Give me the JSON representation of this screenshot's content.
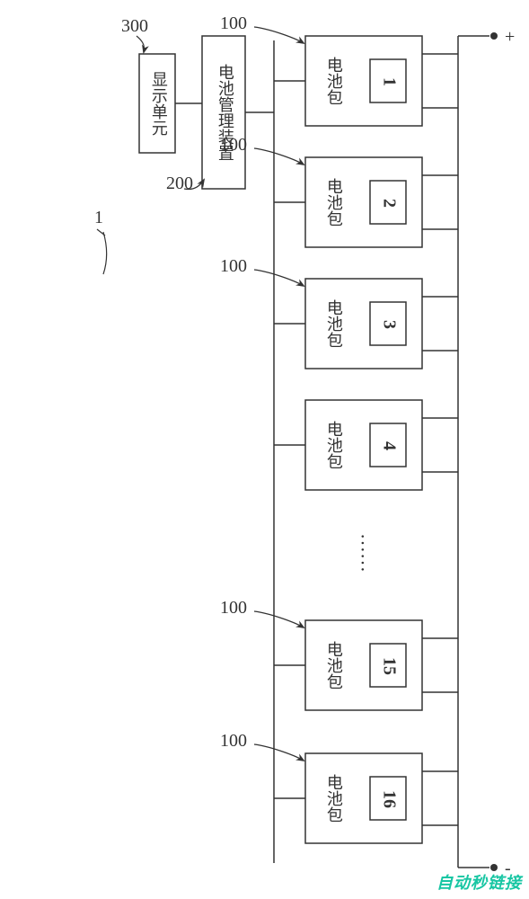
{
  "diagram": {
    "type": "flowchart",
    "background_color": "#ffffff",
    "stroke_color": "#333333",
    "stroke_width": 1.5,
    "font_family": "SimSun",
    "label_fontsize": 18,
    "numeral_fontsize": 20,
    "ref_fontsize": 20,
    "display_unit": {
      "label": "显示单元",
      "ref": "300"
    },
    "management_device": {
      "label": "电池管理装置",
      "ref": "200"
    },
    "system_ref": "1",
    "pack_ref": "100",
    "pack_label": "电池包",
    "packs": [
      {
        "num": "1"
      },
      {
        "num": "2"
      },
      {
        "num": "3"
      },
      {
        "num": "4"
      },
      {
        "num": "15"
      },
      {
        "num": "16"
      }
    ],
    "ellipsis": "……",
    "terminal_positive": "+",
    "terminal_negative": "-",
    "watermark": "自动秒链接"
  }
}
